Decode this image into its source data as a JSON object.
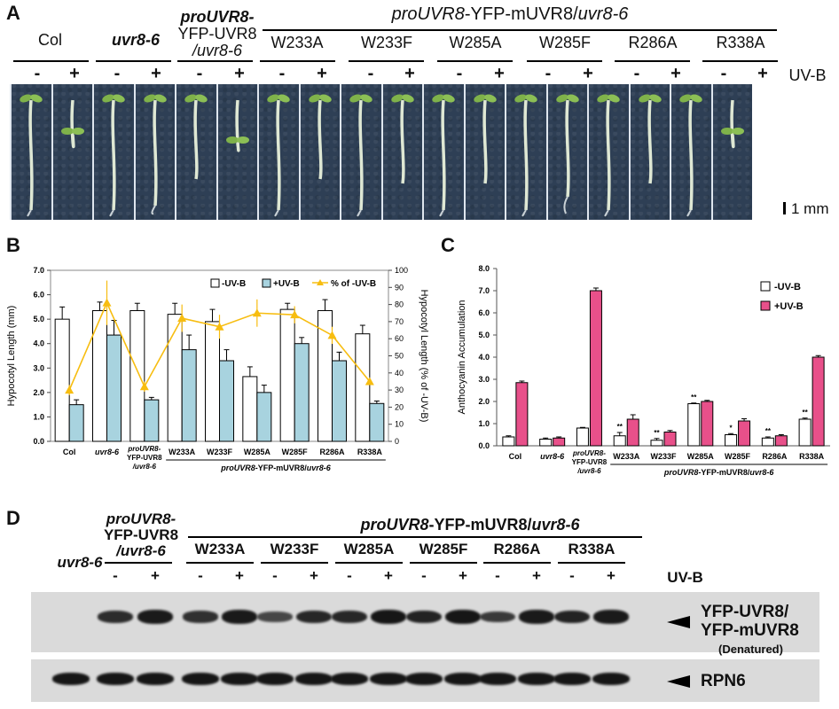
{
  "panel_a": {
    "label": "A",
    "groups": [
      "Col",
      "uvr8-6",
      "proUVR8-",
      "YFP-UVR8",
      "/uvr8-6",
      "W233A",
      "W233F",
      "W285A",
      "W285F",
      "R286A",
      "R338A"
    ],
    "header": "proUVR8-YFP-mUVR8/uvr8-6",
    "header_a": "proUVR8",
    "header_b": "-YFP-mUVR8/",
    "header_c": "uvr8-6",
    "minus": "-",
    "plus": "+",
    "uvb": "UV-B",
    "scale_bar": "1 mm"
  },
  "panel_b": {
    "label": "B",
    "ylabel_left": "Hypocotyl Length (mm)",
    "ylabel_right": "Hypocotyl Length (% of -UV-B)",
    "yticks_left": [
      "0.0",
      "1.0",
      "2.0",
      "3.0",
      "4.0",
      "5.0",
      "6.0",
      "7.0"
    ],
    "yticks_right": [
      "0",
      "10",
      "20",
      "30",
      "40",
      "50",
      "60",
      "70",
      "80",
      "90",
      "100"
    ],
    "legend": [
      "-UV-B",
      "+UV-B",
      "% of -UV-B"
    ],
    "xcats": [
      "Col",
      "uvr8-6",
      "proUVR8-",
      "YFP-UVR8",
      "/uvr8-6",
      "W233A",
      "W233F",
      "W285A",
      "W285F",
      "R286A",
      "R338A"
    ],
    "subgroup_a": "proUVR8",
    "subgroup_b": "-YFP-mUVR8/",
    "subgroup_c": "uvr8-6"
  },
  "panel_c": {
    "label": "C",
    "ylabel": "Anthocyanin Accumulation",
    "yticks": [
      "0.0",
      "1.0",
      "2.0",
      "3.0",
      "4.0",
      "5.0",
      "6.0",
      "7.0",
      "8.0"
    ],
    "legend": [
      "-UV-B",
      "+UV-B"
    ],
    "xcats": [
      "Col",
      "uvr8-6",
      "proUVR8-",
      "YFP-UVR8",
      "/uvr8-6",
      "W233A",
      "W233F",
      "W285A",
      "W285F",
      "R286A",
      "R338A"
    ],
    "subgroup_a": "proUVR8",
    "subgroup_b": "-YFP-mUVR8/",
    "subgroup_c": "uvr8-6",
    "sig": [
      "**",
      "**",
      "**",
      "*",
      "**",
      "**"
    ]
  },
  "panel_d": {
    "label": "D",
    "left_label": "uvr8-6",
    "wt_line1": "proUVR8-",
    "wt_line2": "YFP-UVR8",
    "wt_line3": "/uvr8-6",
    "header_a": "proUVR8",
    "header_b": "-YFP-mUVR8/",
    "header_c": "uvr8-6",
    "mutants": [
      "W233A",
      "W233F",
      "W285A",
      "W285F",
      "R286A",
      "R338A"
    ],
    "minus": "-",
    "plus": "+",
    "uvb": "UV-B",
    "arrow1_line1": "YFP-UVR8/",
    "arrow1_line2": "YFP-mUVR8",
    "arrow1_note": "(Denatured)",
    "arrow2": "RPN6"
  },
  "colors": {
    "minus_bar": "#ffffff",
    "plus_bar_b": "#a8d3df",
    "line_b": "#f7bd10",
    "plus_bar_c": "#e8508a",
    "seedling": "#dfe8d4",
    "photo_bg": "#2e3f55"
  },
  "chart_data": [
    {
      "panel": "B",
      "type": "bar",
      "categories": [
        "Col",
        "uvr8-6",
        "proUVR8-YFP-UVR8/uvr8-6",
        "W233A",
        "W233F",
        "W285A",
        "W285F",
        "R286A",
        "R338A"
      ],
      "series": [
        {
          "name": "-UV-B",
          "values": [
            5.0,
            5.35,
            5.35,
            5.2,
            4.9,
            2.65,
            5.4,
            5.35,
            4.4
          ],
          "errors": [
            0.5,
            0.35,
            0.3,
            0.45,
            0.5,
            0.4,
            0.25,
            0.45,
            0.35
          ],
          "axis": "left"
        },
        {
          "name": "+UV-B",
          "values": [
            1.5,
            4.35,
            1.7,
            3.75,
            3.3,
            2.0,
            4.0,
            3.3,
            1.55
          ],
          "errors": [
            0.2,
            0.6,
            0.1,
            0.6,
            0.45,
            0.3,
            0.25,
            0.35,
            0.1
          ],
          "axis": "left"
        },
        {
          "name": "% of -UV-B",
          "type": "line",
          "values": [
            30,
            81,
            32,
            72,
            67,
            75,
            74,
            62,
            35
          ],
          "errors": [
            3,
            13,
            3,
            8,
            7,
            8,
            5,
            5,
            2
          ],
          "axis": "right"
        }
      ],
      "ylim_left": [
        0,
        7
      ],
      "ylim_right": [
        0,
        100
      ],
      "ylabel": "Hypocotyl Length (mm)",
      "ylabel_right": "Hypocotyl Length (% of -UV-B)",
      "legend": "top"
    },
    {
      "panel": "C",
      "type": "bar",
      "categories": [
        "Col",
        "uvr8-6",
        "proUVR8-YFP-UVR8/uvr8-6",
        "W233A",
        "W233F",
        "W285A",
        "W285F",
        "R286A",
        "R338A"
      ],
      "series": [
        {
          "name": "-UV-B",
          "values": [
            0.4,
            0.3,
            0.8,
            0.45,
            0.25,
            1.9,
            0.5,
            0.35,
            1.2
          ],
          "errors": [
            0.05,
            0.05,
            0.03,
            0.15,
            0.08,
            0.03,
            0.05,
            0.05,
            0.05
          ]
        },
        {
          "name": "+UV-B",
          "values": [
            2.85,
            0.35,
            7.0,
            1.2,
            0.62,
            2.0,
            1.12,
            0.45,
            4.0
          ],
          "errors": [
            0.07,
            0.05,
            0.12,
            0.2,
            0.07,
            0.05,
            0.1,
            0.05,
            0.07
          ]
        }
      ],
      "significance": [
        "",
        "",
        "",
        "**",
        "**",
        "**",
        "*",
        "**",
        "**"
      ],
      "ylim": [
        0,
        8
      ],
      "ylabel": "Anthocyanin Accumulation",
      "legend": "top-right"
    }
  ]
}
